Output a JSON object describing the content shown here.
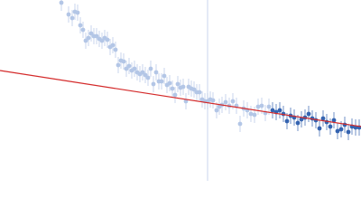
{
  "chart_data": {
    "type": "scatter",
    "xlim": [
      0,
      400
    ],
    "ylim": [
      0,
      200
    ],
    "series": [
      {
        "color": "#b3c6e6",
        "error": 9,
        "x": [
          68,
          76,
          80,
          83,
          86,
          89,
          92,
          95,
          98,
          101,
          104,
          107,
          110,
          113,
          116,
          119,
          122,
          125,
          128,
          131,
          134,
          137,
          140,
          143,
          146,
          149,
          152,
          155,
          158,
          161,
          164,
          167,
          170,
          173,
          176,
          179,
          182,
          185,
          188,
          191,
          194,
          197,
          200,
          203,
          206,
          209,
          212,
          215,
          218,
          221,
          224,
          227,
          230,
          233,
          236,
          240,
          243,
          246,
          250,
          254,
          258,
          262,
          266,
          270,
          274,
          278,
          282,
          286,
          290,
          294,
          298
        ],
        "y": [
          197,
          184,
          180,
          187,
          186,
          172,
          167,
          155,
          158,
          163,
          160,
          160,
          157,
          155,
          158,
          156,
          148,
          150,
          145,
          128,
          133,
          132,
          124,
          127,
          122,
          124,
          120,
          118,
          120,
          117,
          114,
          124,
          107,
          120,
          110,
          110,
          116,
          106,
          108,
          102,
          95,
          107,
          103,
          104,
          88,
          104,
          102,
          101,
          98,
          98,
          90,
          88,
          88,
          90,
          89,
          78,
          82,
          84,
          87,
          83,
          88,
          83,
          63,
          80,
          78,
          74,
          73,
          82,
          83,
          75,
          82
        ]
      },
      {
        "color": "#3463b0",
        "error": 9,
        "x": [
          302,
          306,
          310,
          314,
          318,
          322,
          326,
          330,
          334,
          338,
          342,
          346,
          350,
          354,
          358,
          362,
          366,
          370,
          374,
          378,
          382,
          386,
          390,
          394,
          398
        ],
        "y": [
          78,
          76,
          78,
          74,
          66,
          72,
          70,
          64,
          68,
          70,
          74,
          69,
          67,
          58,
          69,
          65,
          60,
          67,
          55,
          57,
          62,
          54,
          60,
          59,
          59
        ]
      }
    ],
    "fit": {
      "color": "#d42a2a",
      "x": [
        0,
        400
      ],
      "y": [
        122,
        60
      ]
    },
    "marker_line": {
      "color": "#c9d5ec",
      "x": 230
    }
  }
}
